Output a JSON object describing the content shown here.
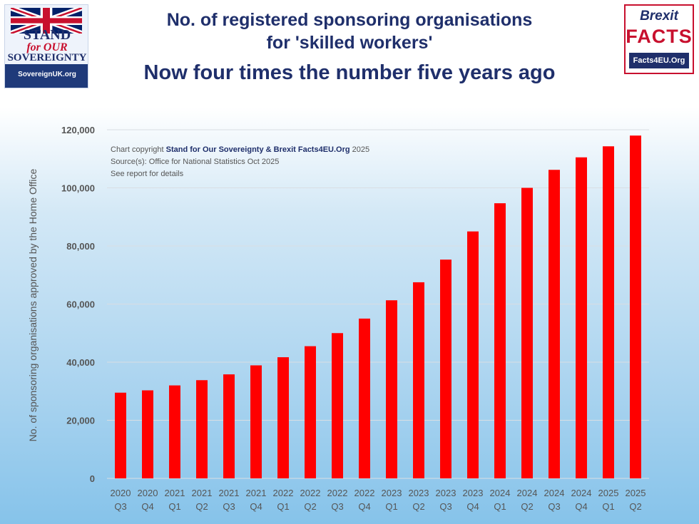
{
  "header": {
    "title_line1": "No. of registered sponsoring organisations",
    "title_line2": "for 'skilled workers'",
    "title_line3": "Now four times the number five years ago"
  },
  "logos": {
    "left": {
      "line1": "STAND",
      "line2": "for OUR",
      "line3": "SOVEREIGNTY",
      "url": "SovereignUK.org"
    },
    "right": {
      "line1": "Brexit",
      "line2": "FACTS",
      "line3": "Facts4EU.Org"
    }
  },
  "notes": {
    "copyright_prefix": "Chart copyright ",
    "copyright_bold": "Stand for Our Sovereignty & Brexit Facts4EU.Org",
    "copyright_suffix": " 2025",
    "source": "Source(s): Office for National Statistics Oct 2025",
    "details": "See report for details"
  },
  "colors": {
    "bar": "#ff0000",
    "title": "#1f2f6b",
    "grid": "#d9dee3"
  },
  "chart_data": {
    "type": "bar",
    "title": "No. of registered sponsoring organisations for 'skilled workers'",
    "subtitle": "Now four times the number five years ago",
    "ylabel": "No. of sponsoring organisations approved by the Home Office",
    "xlabel": "",
    "ylim": [
      0,
      120000
    ],
    "yticks": [
      0,
      20000,
      40000,
      60000,
      80000,
      100000,
      120000
    ],
    "ytick_labels": [
      "0",
      "20,000",
      "40,000",
      "60,000",
      "80,000",
      "100,000",
      "120,000"
    ],
    "grid": true,
    "categories": [
      [
        "2020",
        "Q3"
      ],
      [
        "2020",
        "Q4"
      ],
      [
        "2021",
        "Q1"
      ],
      [
        "2021",
        "Q2"
      ],
      [
        "2021",
        "Q3"
      ],
      [
        "2021",
        "Q4"
      ],
      [
        "2022",
        "Q1"
      ],
      [
        "2022",
        "Q2"
      ],
      [
        "2022",
        "Q3"
      ],
      [
        "2022",
        "Q4"
      ],
      [
        "2023",
        "Q1"
      ],
      [
        "2023",
        "Q2"
      ],
      [
        "2023",
        "Q3"
      ],
      [
        "2023",
        "Q4"
      ],
      [
        "2024",
        "Q1"
      ],
      [
        "2024",
        "Q2"
      ],
      [
        "2024",
        "Q3"
      ],
      [
        "2024",
        "Q4"
      ],
      [
        "2025",
        "Q1"
      ],
      [
        "2025",
        "Q2"
      ]
    ],
    "values": [
      29500,
      30300,
      32000,
      33800,
      35800,
      38900,
      41700,
      45500,
      50000,
      55000,
      61300,
      67500,
      75300,
      85000,
      94700,
      100000,
      106200,
      110500,
      114300,
      118000
    ]
  }
}
